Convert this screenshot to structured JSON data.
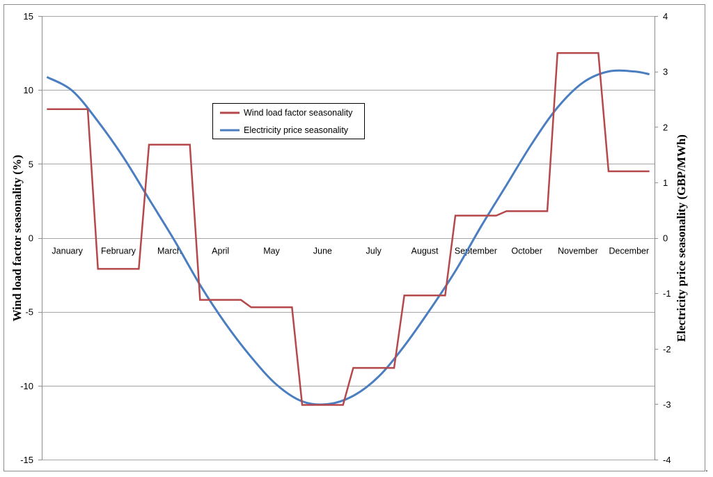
{
  "chart_data": {
    "type": "line",
    "colors": {
      "wind": "#B5484A",
      "price": "#4A7EC0",
      "grid": "#A6A6A6",
      "frame": "#8C8C8C"
    },
    "categories": [
      "January",
      "February",
      "March",
      "April",
      "May",
      "June",
      "July",
      "August",
      "September",
      "October",
      "November",
      "December"
    ],
    "y_left": {
      "label": "Wind load factor seasonality (%)",
      "ylim": [
        -15,
        15
      ],
      "ticks": [
        "15",
        "10",
        "5",
        "0",
        "-5",
        "-10",
        "-15"
      ],
      "tick_values": [
        15,
        10,
        5,
        0,
        -5,
        -10,
        -15
      ]
    },
    "y_right": {
      "label": "Electricity price seasonality (GBP/MWh)",
      "ylim": [
        -4,
        4
      ],
      "ticks": [
        "4",
        "3",
        "2",
        "1",
        "0",
        "-1",
        "-2",
        "-3",
        "-4"
      ],
      "tick_values": [
        4,
        3,
        2,
        1,
        0,
        -1,
        -2,
        -3,
        -4
      ]
    },
    "grid": "horizontal",
    "legend_position": "top-center",
    "series": [
      {
        "name": "Wind load factor seasonality",
        "axis": "left",
        "x": [
          0.0,
          0.8,
          1.0,
          1.8,
          2.0,
          2.8,
          3.0,
          3.8,
          4.0,
          4.8,
          5.0,
          5.8,
          6.0,
          6.8,
          7.0,
          7.8,
          8.0,
          8.8,
          9.0,
          9.8,
          10.0,
          10.8,
          11.0,
          11.8
        ],
        "values": [
          8.7,
          8.7,
          -2.1,
          -2.1,
          6.3,
          6.3,
          -4.2,
          -4.2,
          -4.7,
          -4.7,
          -11.3,
          -11.3,
          -8.8,
          -8.8,
          -3.9,
          -3.9,
          1.5,
          1.5,
          1.8,
          1.8,
          12.5,
          12.5,
          4.5,
          4.5
        ]
      },
      {
        "name": "Electricity price seasonality",
        "axis": "right",
        "x": [
          0,
          0.5,
          1,
          1.5,
          2,
          2.5,
          3,
          3.5,
          4,
          4.5,
          5,
          5.5,
          6,
          6.5,
          7,
          7.5,
          8,
          8.5,
          9,
          9.5,
          10,
          10.5,
          11,
          11.5,
          11.8
        ],
        "values": [
          2.9,
          2.65,
          2.1,
          1.45,
          0.7,
          -0.05,
          -0.85,
          -1.55,
          -2.15,
          -2.65,
          -2.95,
          -3.0,
          -2.85,
          -2.5,
          -1.95,
          -1.3,
          -0.6,
          0.2,
          0.95,
          1.7,
          2.35,
          2.8,
          3.0,
          3.0,
          2.95
        ]
      }
    ]
  },
  "trailing_text": "."
}
